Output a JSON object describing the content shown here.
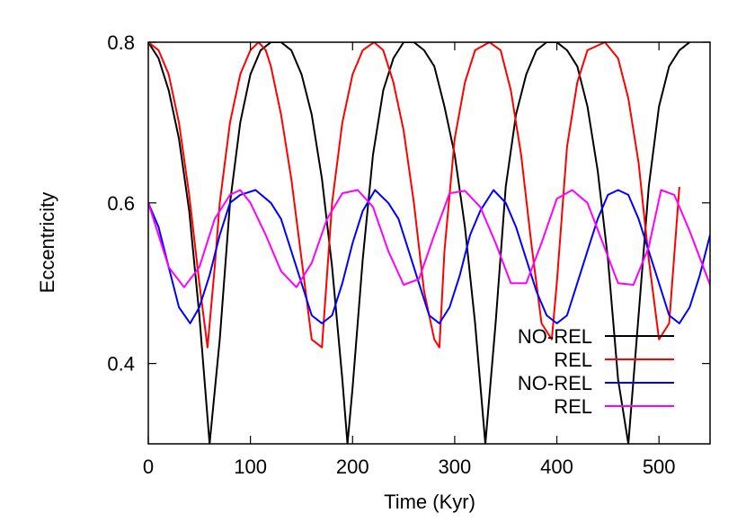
{
  "chart_data": {
    "type": "line",
    "title": "",
    "xlabel": "Time (Kyr)",
    "ylabel": "Eccentricity",
    "xlim": [
      0,
      550
    ],
    "ylim": [
      0.3,
      0.8
    ],
    "xticks": [
      0,
      100,
      200,
      300,
      400,
      500
    ],
    "xtick_labels": [
      "0",
      "100",
      "200",
      "300",
      "400",
      "500"
    ],
    "yticks": [
      0.4,
      0.6,
      0.8
    ],
    "ytick_labels": [
      "0.4",
      "0.6",
      "0.8"
    ],
    "grid": false,
    "legend_position": "lower-right",
    "series": [
      {
        "name": "NO-REL",
        "color": "#000000",
        "x": [
          0,
          10,
          20,
          30,
          40,
          50,
          60,
          70,
          80,
          90,
          100,
          110,
          120,
          130,
          140,
          150,
          160,
          170,
          180,
          190,
          195,
          200,
          210,
          220,
          230,
          240,
          250,
          260,
          270,
          280,
          290,
          300,
          310,
          320,
          330,
          340,
          350,
          360,
          370,
          380,
          390,
          400,
          410,
          420,
          430,
          440,
          450,
          460,
          470,
          480,
          490,
          500,
          510,
          520,
          530
        ],
        "y": [
          0.8,
          0.78,
          0.74,
          0.68,
          0.59,
          0.46,
          0.3,
          0.43,
          0.6,
          0.7,
          0.76,
          0.79,
          0.8,
          0.8,
          0.79,
          0.76,
          0.71,
          0.63,
          0.52,
          0.38,
          0.3,
          0.37,
          0.53,
          0.66,
          0.74,
          0.78,
          0.8,
          0.8,
          0.79,
          0.77,
          0.72,
          0.66,
          0.57,
          0.45,
          0.3,
          0.45,
          0.62,
          0.71,
          0.76,
          0.79,
          0.8,
          0.8,
          0.79,
          0.77,
          0.72,
          0.64,
          0.53,
          0.38,
          0.3,
          0.46,
          0.62,
          0.72,
          0.77,
          0.79,
          0.8
        ]
      },
      {
        "name": "REL",
        "color": "#ff0000",
        "x": [
          0,
          10,
          20,
          30,
          40,
          50,
          58,
          65,
          70,
          80,
          90,
          100,
          108,
          115,
          120,
          130,
          140,
          150,
          160,
          170,
          180,
          190,
          200,
          210,
          221,
          230,
          240,
          250,
          260,
          270,
          280,
          285,
          290,
          300,
          310,
          320,
          334,
          345,
          355,
          365,
          375,
          385,
          395,
          400,
          410,
          420,
          430,
          447,
          460,
          470,
          480,
          490,
          500,
          510,
          520
        ],
        "y": [
          0.8,
          0.79,
          0.76,
          0.7,
          0.61,
          0.5,
          0.42,
          0.52,
          0.6,
          0.7,
          0.76,
          0.79,
          0.8,
          0.79,
          0.77,
          0.71,
          0.63,
          0.53,
          0.43,
          0.42,
          0.6,
          0.7,
          0.76,
          0.79,
          0.8,
          0.79,
          0.75,
          0.69,
          0.6,
          0.49,
          0.43,
          0.42,
          0.54,
          0.68,
          0.75,
          0.79,
          0.8,
          0.79,
          0.74,
          0.66,
          0.55,
          0.45,
          0.43,
          0.5,
          0.67,
          0.75,
          0.79,
          0.8,
          0.78,
          0.73,
          0.65,
          0.53,
          0.43,
          0.45,
          0.62
        ]
      },
      {
        "name": "NO-REL",
        "color": "#0000ff",
        "x": [
          0,
          10,
          20,
          30,
          41,
          50,
          60,
          70,
          80,
          90,
          105,
          120,
          130,
          140,
          150,
          160,
          170,
          180,
          190,
          200,
          210,
          222,
          235,
          245,
          255,
          265,
          275,
          285,
          295,
          305,
          315,
          325,
          338,
          350,
          360,
          370,
          380,
          390,
          400,
          410,
          420,
          430,
          440,
          450,
          460,
          470,
          480,
          490,
          500,
          510,
          520,
          530,
          540,
          550
        ],
        "y": [
          0.6,
          0.57,
          0.52,
          0.47,
          0.45,
          0.47,
          0.51,
          0.56,
          0.6,
          0.61,
          0.616,
          0.6,
          0.58,
          0.54,
          0.5,
          0.46,
          0.45,
          0.46,
          0.5,
          0.55,
          0.59,
          0.616,
          0.6,
          0.58,
          0.54,
          0.5,
          0.46,
          0.45,
          0.47,
          0.51,
          0.56,
          0.59,
          0.616,
          0.6,
          0.57,
          0.53,
          0.49,
          0.46,
          0.45,
          0.46,
          0.5,
          0.54,
          0.58,
          0.61,
          0.616,
          0.61,
          0.58,
          0.54,
          0.5,
          0.46,
          0.45,
          0.47,
          0.51,
          0.56
        ]
      },
      {
        "name": "REL",
        "color": "#ff00ff",
        "x": [
          0,
          10,
          20,
          35,
          50,
          65,
          80,
          90,
          100,
          115,
          130,
          145,
          160,
          175,
          190,
          205,
          220,
          235,
          250,
          265,
          280,
          295,
          310,
          325,
          340,
          355,
          370,
          385,
          400,
          415,
          430,
          445,
          460,
          475,
          490,
          502,
          515,
          530,
          550
        ],
        "y": [
          0.6,
          0.56,
          0.52,
          0.495,
          0.52,
          0.58,
          0.61,
          0.616,
          0.6,
          0.56,
          0.515,
          0.495,
          0.525,
          0.58,
          0.612,
          0.616,
          0.595,
          0.54,
          0.498,
          0.505,
          0.56,
          0.612,
          0.615,
          0.595,
          0.55,
          0.5,
          0.5,
          0.55,
          0.605,
          0.616,
          0.6,
          0.55,
          0.5,
          0.498,
          0.545,
          0.616,
          0.61,
          0.565,
          0.498
        ]
      }
    ]
  }
}
